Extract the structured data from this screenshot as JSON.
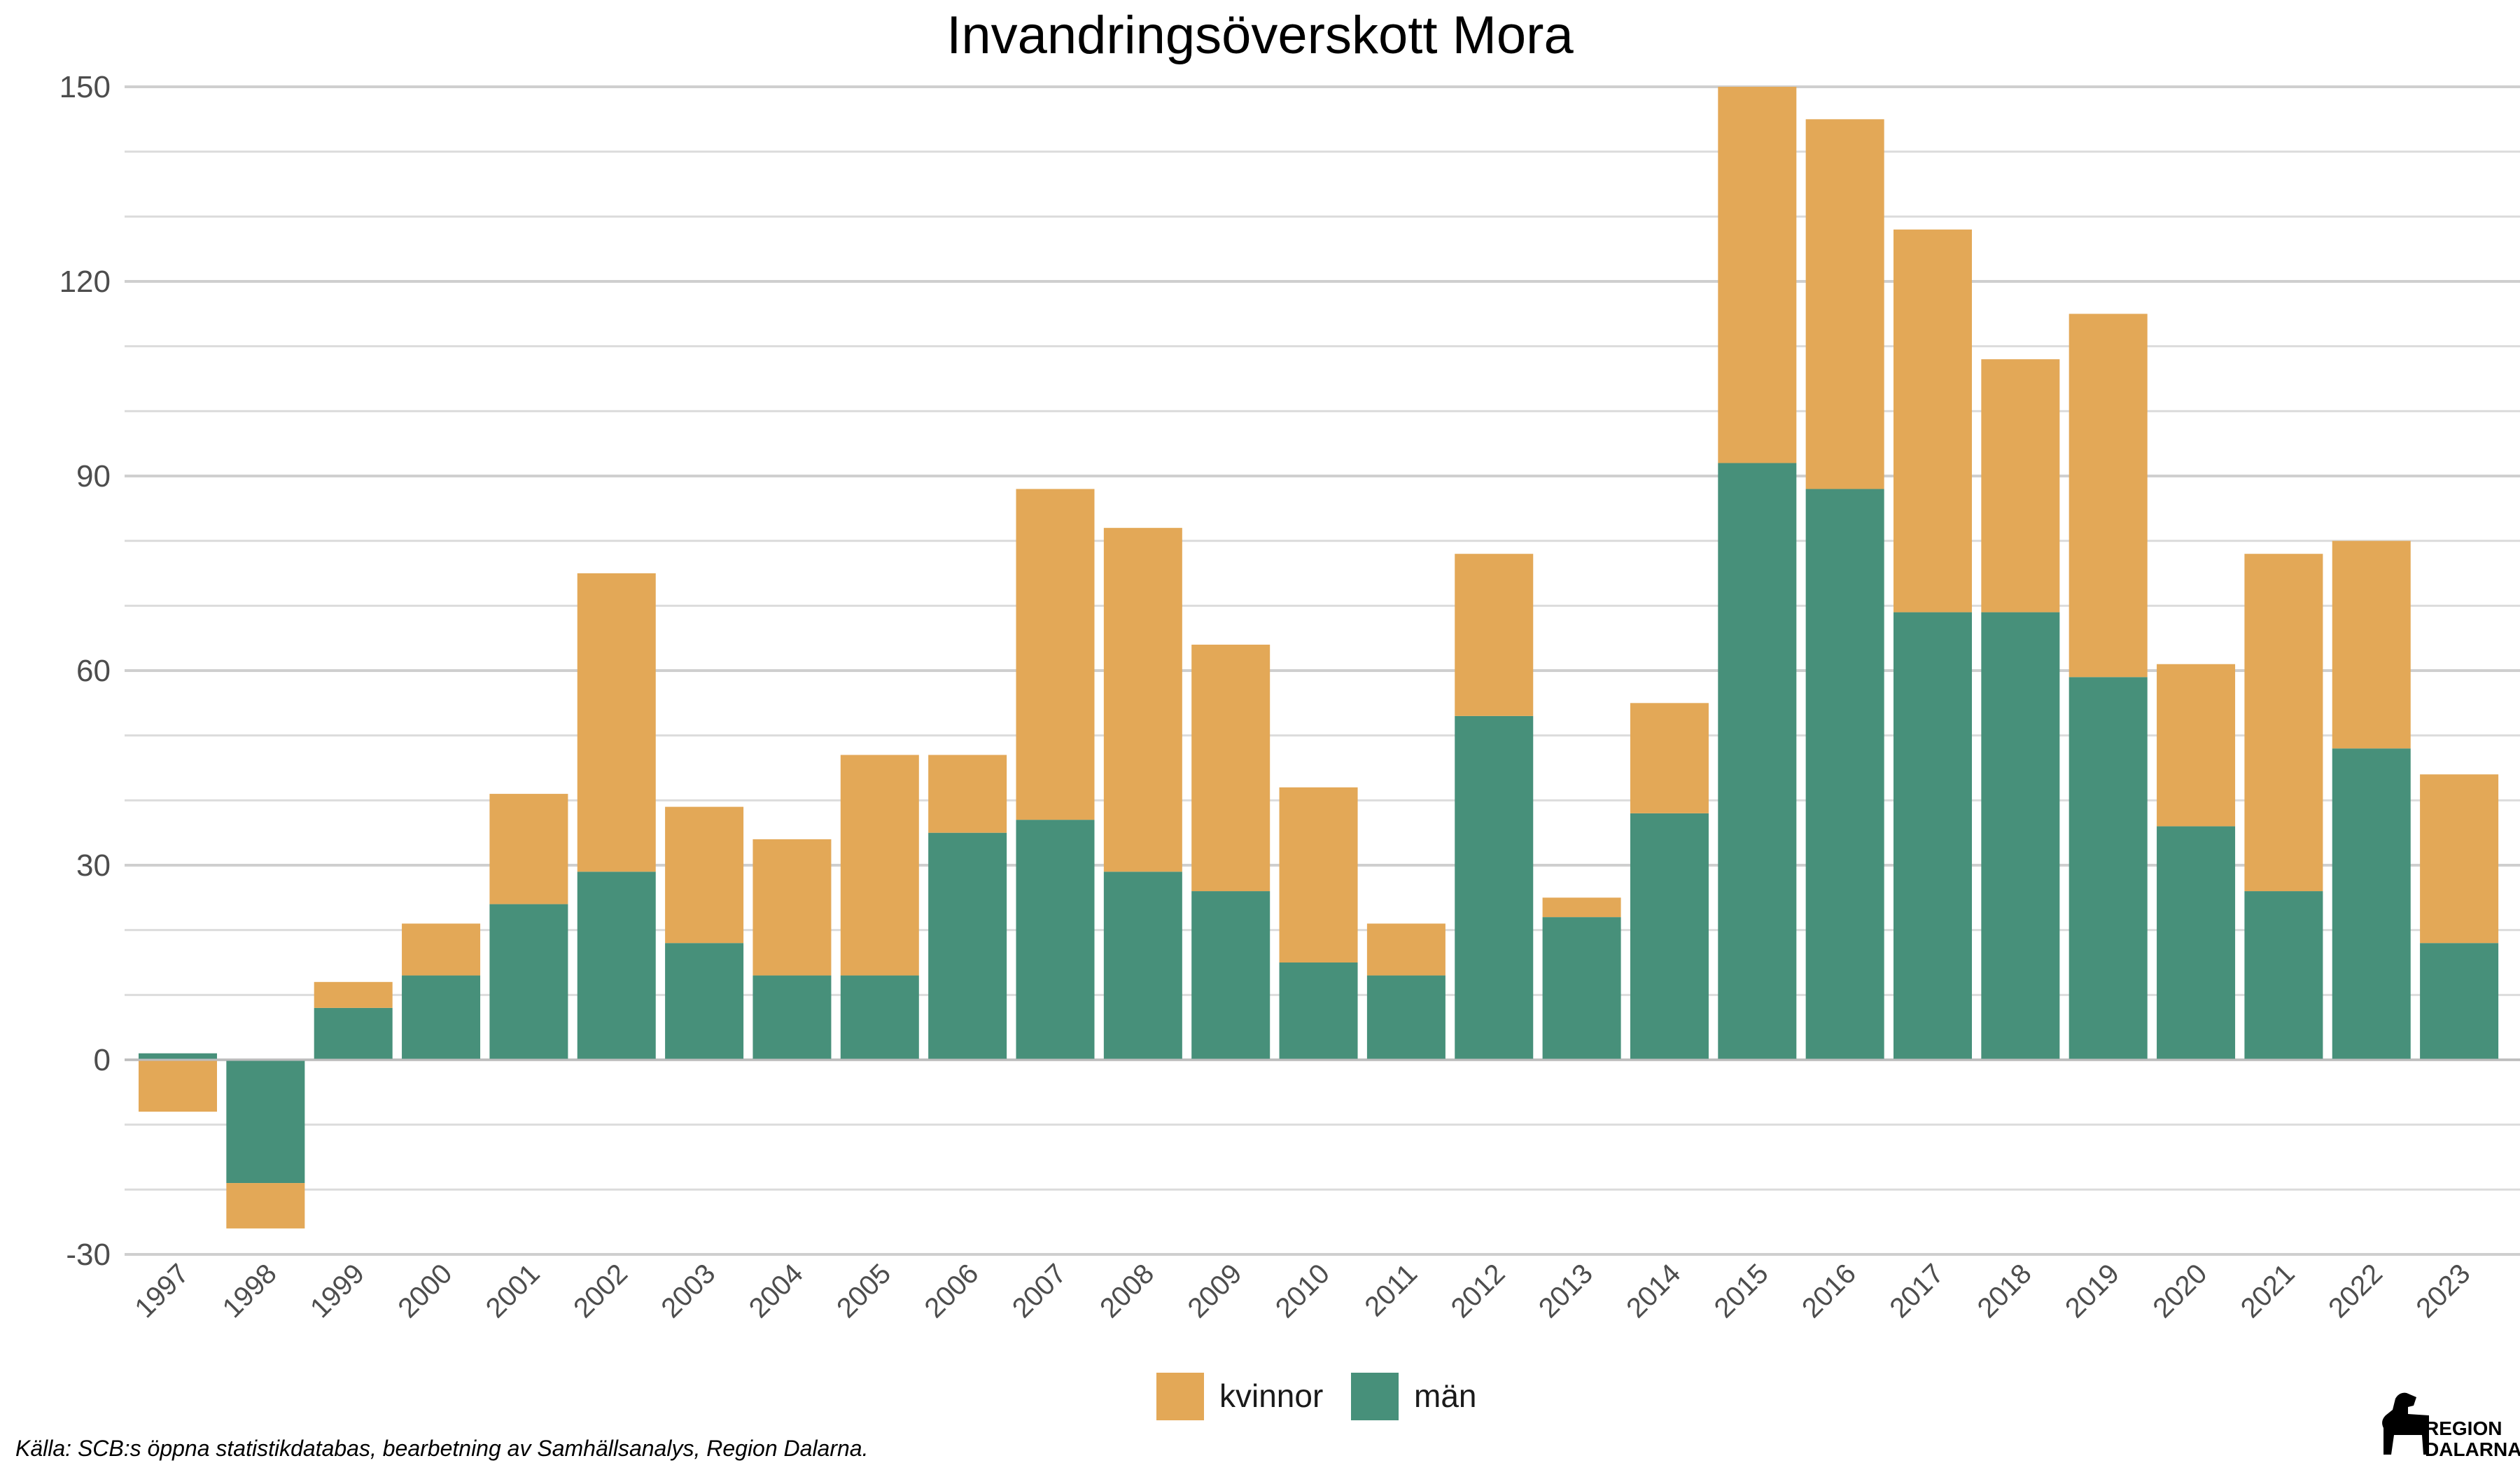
{
  "chart_data": {
    "type": "bar",
    "stacked": true,
    "title": "Invandringsöverskott Mora",
    "xlabel": "",
    "ylabel": "",
    "ylim": [
      -30,
      150
    ],
    "yticks": [
      -30,
      0,
      30,
      60,
      90,
      120,
      150
    ],
    "categories": [
      "1997",
      "1998",
      "1999",
      "2000",
      "2001",
      "2002",
      "2003",
      "2004",
      "2005",
      "2006",
      "2007",
      "2008",
      "2009",
      "2010",
      "2011",
      "2012",
      "2013",
      "2014",
      "2015",
      "2016",
      "2017",
      "2018",
      "2019",
      "2020",
      "2021",
      "2022",
      "2023"
    ],
    "series": [
      {
        "name": "män",
        "color": "#47907A",
        "values": [
          1,
          -19,
          8,
          13,
          24,
          29,
          18,
          13,
          13,
          35,
          37,
          29,
          26,
          15,
          13,
          53,
          22,
          38,
          92,
          88,
          69,
          69,
          59,
          36,
          26,
          48,
          18
        ]
      },
      {
        "name": "kvinnor",
        "color": "#E3A857",
        "values": [
          -8,
          -7,
          4,
          8,
          17,
          46,
          21,
          21,
          34,
          12,
          51,
          53,
          38,
          27,
          8,
          25,
          3,
          17,
          58,
          57,
          59,
          39,
          56,
          25,
          52,
          32,
          26
        ]
      }
    ],
    "legend": {
      "position": "bottom",
      "order": [
        "kvinnor",
        "män"
      ]
    },
    "grid": true
  },
  "source": "Källa: SCB:s öppna statistikdatabas, bearbetning av Samhällsanalys, Region Dalarna.",
  "logo": {
    "line1": "REGION",
    "line2": "DALARNA"
  }
}
